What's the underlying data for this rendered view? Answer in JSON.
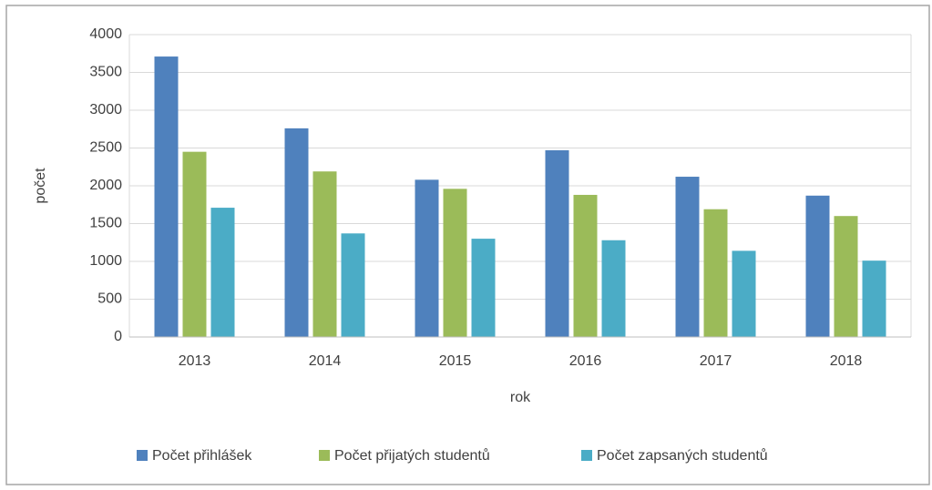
{
  "chart_data": {
    "type": "bar",
    "x_label": "rok",
    "y_label": "počet",
    "categories": [
      "2013",
      "2014",
      "2015",
      "2016",
      "2017",
      "2018"
    ],
    "series": [
      {
        "name": "Počet přihlášek",
        "color": "#4f81bd",
        "values": [
          3710,
          2760,
          2080,
          2470,
          2120,
          1870
        ]
      },
      {
        "name": "Počet přijatých studentů",
        "color": "#9bbb59",
        "values": [
          2450,
          2190,
          1960,
          1880,
          1690,
          1600
        ]
      },
      {
        "name": "Počet zapsaných studentů",
        "color": "#4bacc6",
        "values": [
          1710,
          1370,
          1300,
          1280,
          1140,
          1010
        ]
      }
    ],
    "ylim": [
      0,
      4000
    ],
    "yticks": [
      0,
      500,
      1000,
      1500,
      2000,
      2500,
      3000,
      3500,
      4000
    ],
    "grid": true,
    "legend": "bottom"
  }
}
